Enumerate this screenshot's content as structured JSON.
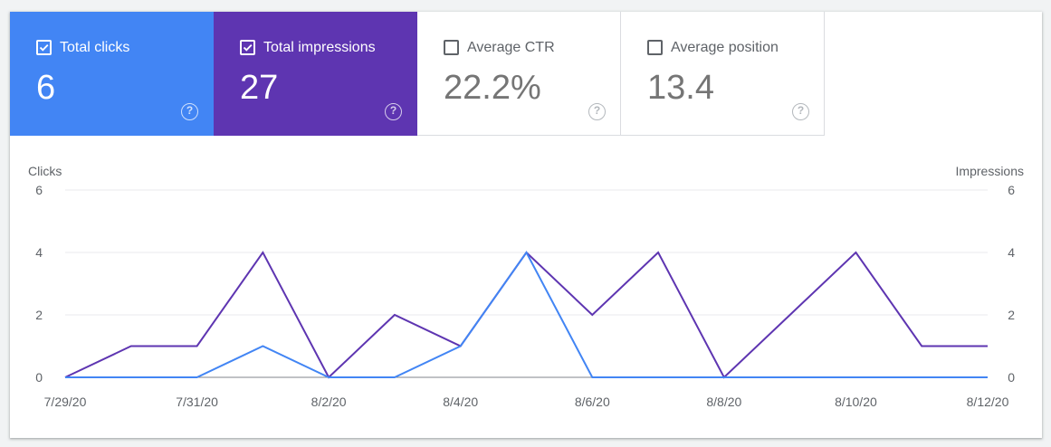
{
  "metrics": [
    {
      "label": "Total clicks",
      "value": "6",
      "checked": true,
      "color": "#4285f4",
      "help_icon": "help-circle-icon"
    },
    {
      "label": "Total impressions",
      "value": "27",
      "checked": true,
      "color": "#5e35b1",
      "help_icon": "help-circle-icon"
    },
    {
      "label": "Average CTR",
      "value": "22.2%",
      "checked": false,
      "color": "#ffffff",
      "help_icon": "help-circle-icon"
    },
    {
      "label": "Average position",
      "value": "13.4",
      "checked": false,
      "color": "#ffffff",
      "help_icon": "help-circle-icon"
    }
  ],
  "help_glyph": "?",
  "chart_data": {
    "type": "line",
    "x": [
      "7/29/20",
      "7/30/20",
      "7/31/20",
      "8/1/20",
      "8/2/20",
      "8/3/20",
      "8/4/20",
      "8/5/20",
      "8/6/20",
      "8/7/20",
      "8/8/20",
      "8/9/20",
      "8/10/20",
      "8/11/20",
      "8/12/20"
    ],
    "x_tick_labels": [
      "7/29/20",
      "7/31/20",
      "8/2/20",
      "8/4/20",
      "8/6/20",
      "8/8/20",
      "8/10/20",
      "8/12/20"
    ],
    "ylabel_left": "Clicks",
    "ylabel_right": "Impressions",
    "ylim": [
      0,
      6
    ],
    "y_ticks": [
      0,
      2,
      4,
      6
    ],
    "grid": true,
    "series": [
      {
        "name": "Impressions",
        "color": "#5e35b1",
        "values": [
          0,
          1,
          1,
          4,
          0,
          2,
          1,
          4,
          2,
          4,
          0,
          2,
          4,
          1,
          1
        ]
      },
      {
        "name": "Clicks",
        "color": "#4285f4",
        "values": [
          0,
          0,
          0,
          1,
          0,
          0,
          1,
          4,
          0,
          0,
          0,
          0,
          0,
          0,
          0
        ]
      }
    ]
  }
}
